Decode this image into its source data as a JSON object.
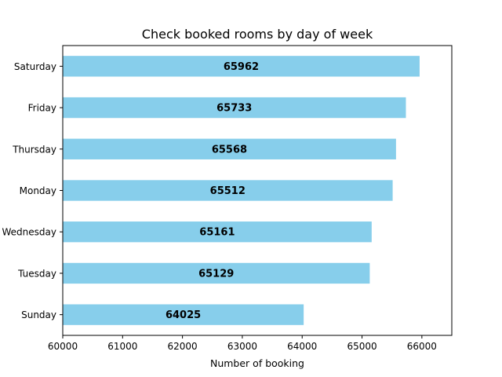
{
  "chart_data": {
    "type": "bar",
    "orientation": "horizontal",
    "title": "Check booked rooms by day of week",
    "xlabel": "Number of booking",
    "ylabel": "",
    "categories": [
      "Sunday",
      "Tuesday",
      "Wednesday",
      "Monday",
      "Thursday",
      "Friday",
      "Saturday"
    ],
    "values": [
      64025,
      65129,
      65161,
      65512,
      65568,
      65733,
      65962
    ],
    "xlim": [
      60000,
      66500
    ],
    "xticks": [
      60000,
      61000,
      62000,
      63000,
      64000,
      65000,
      66000
    ],
    "bar_color": "#87ceeb",
    "grid": false,
    "legend": "none"
  }
}
